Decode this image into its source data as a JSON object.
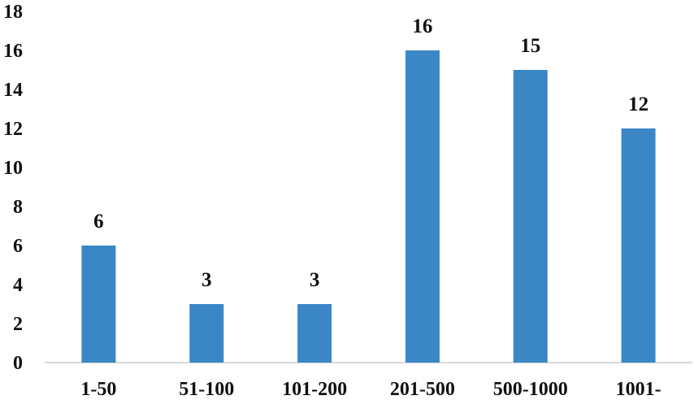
{
  "chart_data": {
    "type": "bar",
    "categories": [
      "1-50",
      "51-100",
      "101-200",
      "201-500",
      "500-1000",
      "1001-"
    ],
    "values": [
      6,
      3,
      3,
      16,
      15,
      12
    ],
    "data_labels": [
      "6",
      "3",
      "3",
      "16",
      "15",
      "12"
    ],
    "yticks": [
      "0",
      "2",
      "4",
      "6",
      "8",
      "10",
      "12",
      "14",
      "16",
      "18"
    ],
    "ylim": [
      0,
      18
    ],
    "title": "",
    "xlabel": "",
    "ylabel": "",
    "grid": false,
    "legend": "none",
    "bar_color": "#3b87c6",
    "axis_color": "#d9d9d9"
  }
}
